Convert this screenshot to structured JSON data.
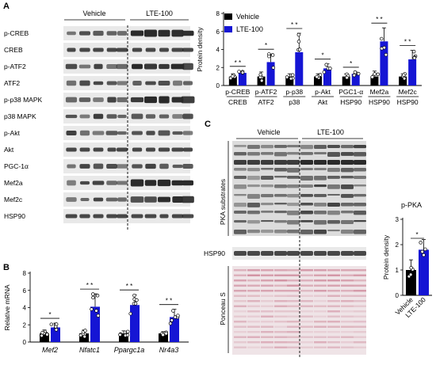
{
  "colors": {
    "vehicle": "#000000",
    "lte": "#1515d4",
    "blot_bg": "#e9e9e9",
    "band": "#2a2a2a",
    "ponceau": "#e6b8c2"
  },
  "panels": {
    "A": "A",
    "B": "B",
    "C": "C"
  },
  "groups": {
    "vehicle": "Vehicle",
    "lte": "LTE-100"
  },
  "blot_labels_A": [
    "p-CREB",
    "CREB",
    "p-ATF2",
    "ATF2",
    "p-p38 MAPK",
    "p38 MAPK",
    "p-Akt",
    "Akt",
    "PGC-1α",
    "Mef2a",
    "Mef2c",
    "HSP90"
  ],
  "blot_labels_C": {
    "pka": "PKA substrates",
    "hsp90": "HSP90",
    "ponceau": "Ponceau S"
  },
  "chart_data": [
    {
      "id": "A",
      "type": "bar",
      "ylabel": "Protein density",
      "ylim": [
        0,
        8
      ],
      "yticks": [
        0,
        2,
        4,
        6,
        8
      ],
      "legend": [
        "Vehicle",
        "LTE-100"
      ],
      "legend_position": "top-left",
      "categories": [
        "p-CREB",
        "p-ATF2",
        "p-p38",
        "p-Akt",
        "PGC1-α",
        "Mef2a",
        "Mef2c"
      ],
      "denominators": [
        "CREB",
        "ATF2",
        "p38",
        "Akt",
        "HSP90",
        "HSP90",
        "HSP90"
      ],
      "series": [
        {
          "name": "Vehicle",
          "values": [
            1.0,
            1.0,
            1.0,
            1.0,
            1.0,
            1.0,
            1.0
          ],
          "errors": [
            0.3,
            0.5,
            0.3,
            0.3,
            0.3,
            0.6,
            0.3
          ]
        },
        {
          "name": "LTE-100",
          "values": [
            1.4,
            2.6,
            3.7,
            1.9,
            1.3,
            4.9,
            2.9
          ],
          "errors": [
            0.2,
            0.9,
            2.1,
            0.5,
            0.2,
            1.5,
            1.0
          ]
        }
      ],
      "significance": [
        "* *",
        "*",
        "* *",
        "*",
        "*",
        "* *",
        "* *"
      ]
    },
    {
      "id": "B",
      "type": "bar",
      "ylabel": "Relative mRNA",
      "ylim": [
        0,
        8
      ],
      "yticks": [
        0,
        2,
        4,
        6,
        8
      ],
      "categories": [
        "Mef2",
        "Nfatc1",
        "Ppargc1a",
        "Nr4a3"
      ],
      "series": [
        {
          "name": "Vehicle",
          "values": [
            1.0,
            1.0,
            1.0,
            1.0
          ],
          "errors": [
            0.4,
            0.4,
            0.3,
            0.2
          ]
        },
        {
          "name": "LTE-100",
          "values": [
            1.7,
            4.1,
            4.3,
            2.9
          ],
          "errors": [
            0.5,
            1.5,
            1.2,
            0.9
          ]
        }
      ],
      "significance": [
        "*",
        "* *",
        "* *",
        "* *"
      ]
    },
    {
      "id": "C",
      "type": "bar",
      "title": "p-PKA",
      "ylabel": "Protein density",
      "ylim": [
        0,
        3
      ],
      "yticks": [
        0,
        1,
        2,
        3
      ],
      "categories": [
        "Vehicle",
        "LTE-100"
      ],
      "values": [
        1.0,
        1.8
      ],
      "errors": [
        0.4,
        0.4
      ],
      "significance": "*"
    }
  ]
}
